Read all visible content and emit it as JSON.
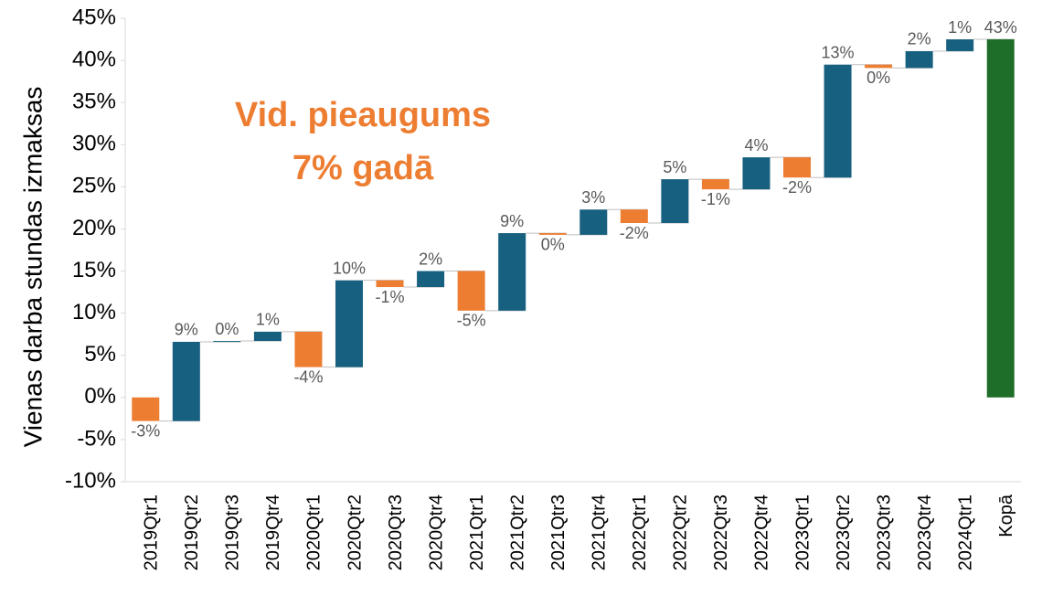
{
  "chart_data": {
    "type": "waterfall",
    "y_label": "Vienas darba stundas izmaksas",
    "annotation": [
      "Vid. pieaugums",
      "7% gadā"
    ],
    "annotation_color": "#ed7d31",
    "categories": [
      "2019Qtr1",
      "2019Qtr2",
      "2019Qtr3",
      "2019Qtr4",
      "2020Qtr1",
      "2020Qtr2",
      "2020Qtr3",
      "2020Qtr4",
      "2021Qtr1",
      "2021Qtr2",
      "2021Qtr3",
      "2021Qtr4",
      "2022Qtr1",
      "2022Qtr2",
      "2022Qtr3",
      "2022Qtr4",
      "2023Qtr1",
      "2023Qtr2",
      "2023Qtr3",
      "2023Qtr4",
      "2024Qtr1",
      "Kopā"
    ],
    "values": [
      -2.8,
      9.4,
      0.1,
      1.1,
      -4.2,
      10.3,
      -0.8,
      1.9,
      -4.7,
      9.2,
      -0.2,
      3.0,
      -1.6,
      5.2,
      -1.2,
      3.8,
      -2.4,
      13.4,
      -0.4,
      2.0,
      1.4,
      42.5
    ],
    "value_labels": [
      "-3%",
      "9%",
      "0%",
      "1%",
      "-4%",
      "10%",
      "-1%",
      "2%",
      "-5%",
      "9%",
      "0%",
      "3%",
      "-2%",
      "5%",
      "-1%",
      "4%",
      "-2%",
      "13%",
      "0%",
      "2%",
      "1%",
      "43%"
    ],
    "last_is_total": true,
    "increase_color": "#17607f",
    "decrease_color": "#ed7d31",
    "total_color": "#1e6e2a",
    "ylim": [
      -10,
      45
    ],
    "yticks": [
      {
        "value": -10,
        "label": "-10%"
      },
      {
        "value": -5,
        "label": "-5%"
      },
      {
        "value": 0,
        "label": "0%"
      },
      {
        "value": 5,
        "label": "5%"
      },
      {
        "value": 10,
        "label": "10%"
      },
      {
        "value": 15,
        "label": "15%"
      },
      {
        "value": 20,
        "label": "20%"
      },
      {
        "value": 25,
        "label": "25%"
      },
      {
        "value": 30,
        "label": "30%"
      },
      {
        "value": 35,
        "label": "35%"
      },
      {
        "value": 40,
        "label": "40%"
      },
      {
        "value": 45,
        "label": "45%"
      }
    ],
    "grid": false
  }
}
